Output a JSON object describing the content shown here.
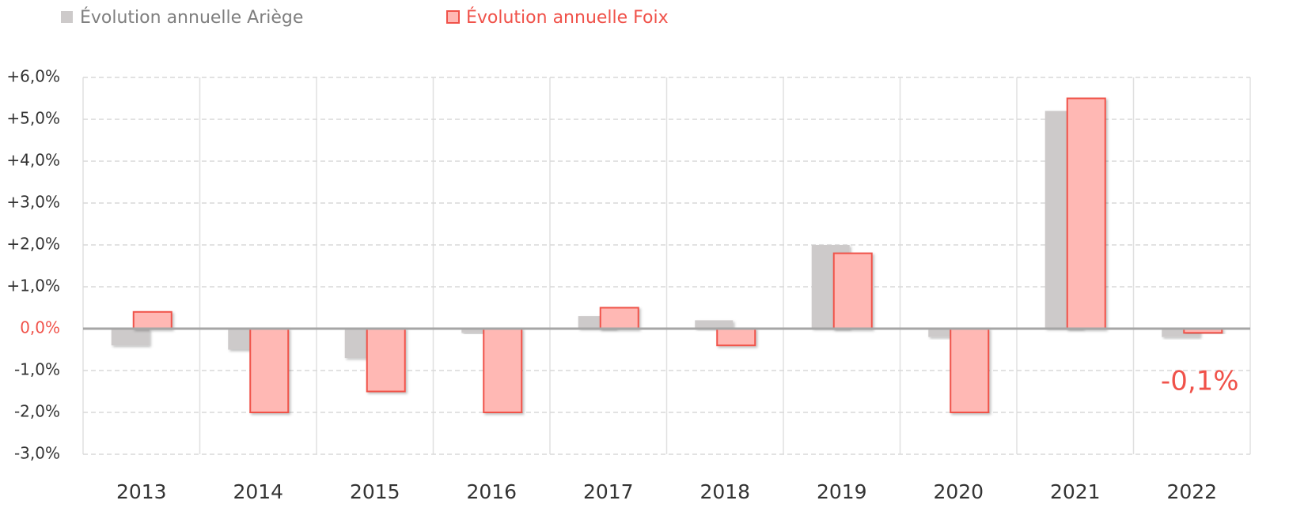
{
  "chart_data": {
    "type": "bar",
    "categories": [
      "2013",
      "2014",
      "2015",
      "2016",
      "2017",
      "2018",
      "2019",
      "2020",
      "2021",
      "2022"
    ],
    "series": [
      {
        "name": "Évolution annuelle Ariège",
        "color": "#cdcaca",
        "values": [
          -0.4,
          -0.5,
          -0.7,
          -0.1,
          0.3,
          0.2,
          2.0,
          -0.2,
          5.2,
          -0.2
        ]
      },
      {
        "name": "Évolution annuelle Foix",
        "color": "#ffb8b4",
        "edge_color": "#f0524a",
        "values": [
          0.4,
          -2.0,
          -1.5,
          -2.0,
          0.5,
          -0.4,
          1.8,
          -2.0,
          5.5,
          -0.1
        ],
        "value_labels": [
          null,
          null,
          null,
          null,
          null,
          null,
          null,
          null,
          null,
          "-0,1%"
        ]
      }
    ],
    "ylim": [
      -3,
      6
    ],
    "yticks": [
      {
        "value": -3,
        "label": "-3,0%"
      },
      {
        "value": -2,
        "label": "-2,0%"
      },
      {
        "value": -1,
        "label": "-1,0%"
      },
      {
        "value": 0,
        "label": "0,0%"
      },
      {
        "value": 1,
        "label": "+1,0%"
      },
      {
        "value": 2,
        "label": "+2,0%"
      },
      {
        "value": 3,
        "label": "+3,0%"
      },
      {
        "value": 4,
        "label": "+4,0%"
      },
      {
        "value": 5,
        "label": "+5,0%"
      },
      {
        "value": 6,
        "label": "+6,0%"
      }
    ],
    "grid": true,
    "legend": "top-left"
  }
}
